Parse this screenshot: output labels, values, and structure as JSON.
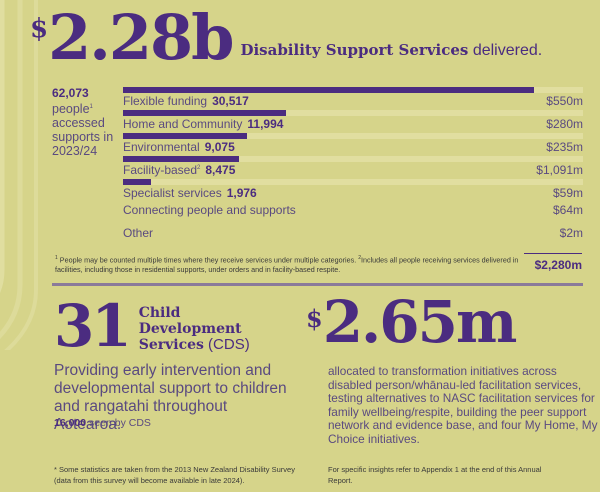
{
  "hero": {
    "currency": "$",
    "amount": "2.28b",
    "title_bold": "Disability Support Services",
    "title_rest": " delivered."
  },
  "people": {
    "count": "62,073",
    "label": "people",
    "note_ref": "1",
    "line2": "accessed",
    "line3": "supports in",
    "line4": "2023/24"
  },
  "chart_data": {
    "type": "bar",
    "orientation": "horizontal",
    "title": "$2.28b Disability Support Services delivered.",
    "categories": [
      "Flexible funding",
      "Home and Community",
      "Environmental",
      "Facility-based",
      "Specialist services",
      "Connecting people and supports",
      "Other"
    ],
    "series": [
      {
        "name": "People",
        "values": [
          30517,
          11994,
          9075,
          8475,
          1976,
          null,
          null
        ]
      },
      {
        "name": "Funding ($m)",
        "values": [
          550,
          280,
          235,
          1091,
          59,
          64,
          2
        ]
      }
    ],
    "bar_series": "People",
    "total": "$2,280m",
    "people_total": 62073
  },
  "chart": {
    "rows": [
      {
        "label": "Flexible funding",
        "sup": "",
        "count": "30,517",
        "amount": "$550m",
        "bar_pct": 89.3
      },
      {
        "label": "Home and Community",
        "sup": "",
        "count": "11,994",
        "amount": "$280m",
        "bar_pct": 35.4
      },
      {
        "label": "Environmental",
        "sup": "",
        "count": "9,075",
        "amount": "$235m",
        "bar_pct": 26.9
      },
      {
        "label": "Facility-based",
        "sup": "2",
        "count": "8,475",
        "amount": "$1,091m",
        "bar_pct": 25.2
      },
      {
        "label": "Specialist services",
        "sup": "",
        "count": "1,976",
        "amount": "$59m",
        "bar_pct": 6.1
      },
      {
        "label": "Connecting people and supports",
        "sup": "",
        "count": "",
        "amount": "$64m",
        "bar_pct": 0
      },
      {
        "label": "Other",
        "sup": "",
        "count": "",
        "amount": "$2m",
        "bar_pct": 0
      }
    ],
    "total": "$2,280m",
    "bar_color": "#4b2c80",
    "track_color": "#e1dea0"
  },
  "footnote": {
    "ref1": "1",
    "text1": " People may be counted multiple times where they receive services under multiple categories. ",
    "ref2": "2",
    "text2": "Includes all people receiving services delivered in facilities, including those in residential supports, under orders and in facility-based respite."
  },
  "cds": {
    "number": "31",
    "title_line1": "Child",
    "title_line2": "Development",
    "title_line3": "Services",
    "title_abbr": " (CDS)",
    "description": "Providing early intervention and developmental support to children and rangatahi throughout Aotearoa.",
    "seen_count": "16,000",
    "seen_label": " seen by CDS"
  },
  "transformation": {
    "currency": "$",
    "amount": "2.65m",
    "description": "allocated to transformation initiatives across disabled person/whānau-led facilitation services, testing alternatives to NASC facilitation services for family wellbeing/respite, building the peer support network and evidence base, and four My Home, My Choice initiatives."
  },
  "footer": {
    "left": "* Some statistics are taken from the 2013 New Zealand Disability Survey (data from this survey will become available in late 2024).",
    "right": "For specific insights refer to Appendix 1 at the end of this Annual Report."
  },
  "colors": {
    "background": "#d6d48a",
    "accent": "#4b2c80",
    "text": "#5a4a80"
  }
}
